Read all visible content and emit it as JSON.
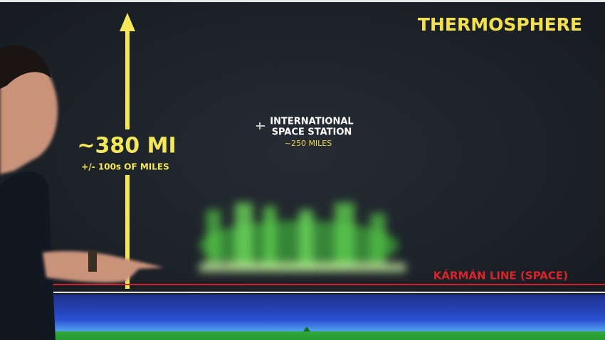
{
  "title": "THERMOSPHERE",
  "altitude": {
    "label": "~380 MI",
    "note": "+/- 100s OF MILES"
  },
  "iss": {
    "name_line1": "INTERNATIONAL",
    "name_line2": "SPACE STATION",
    "altitude": "~250 MILES"
  },
  "karman_line": "KÁRMÁN LINE (SPACE)"
}
